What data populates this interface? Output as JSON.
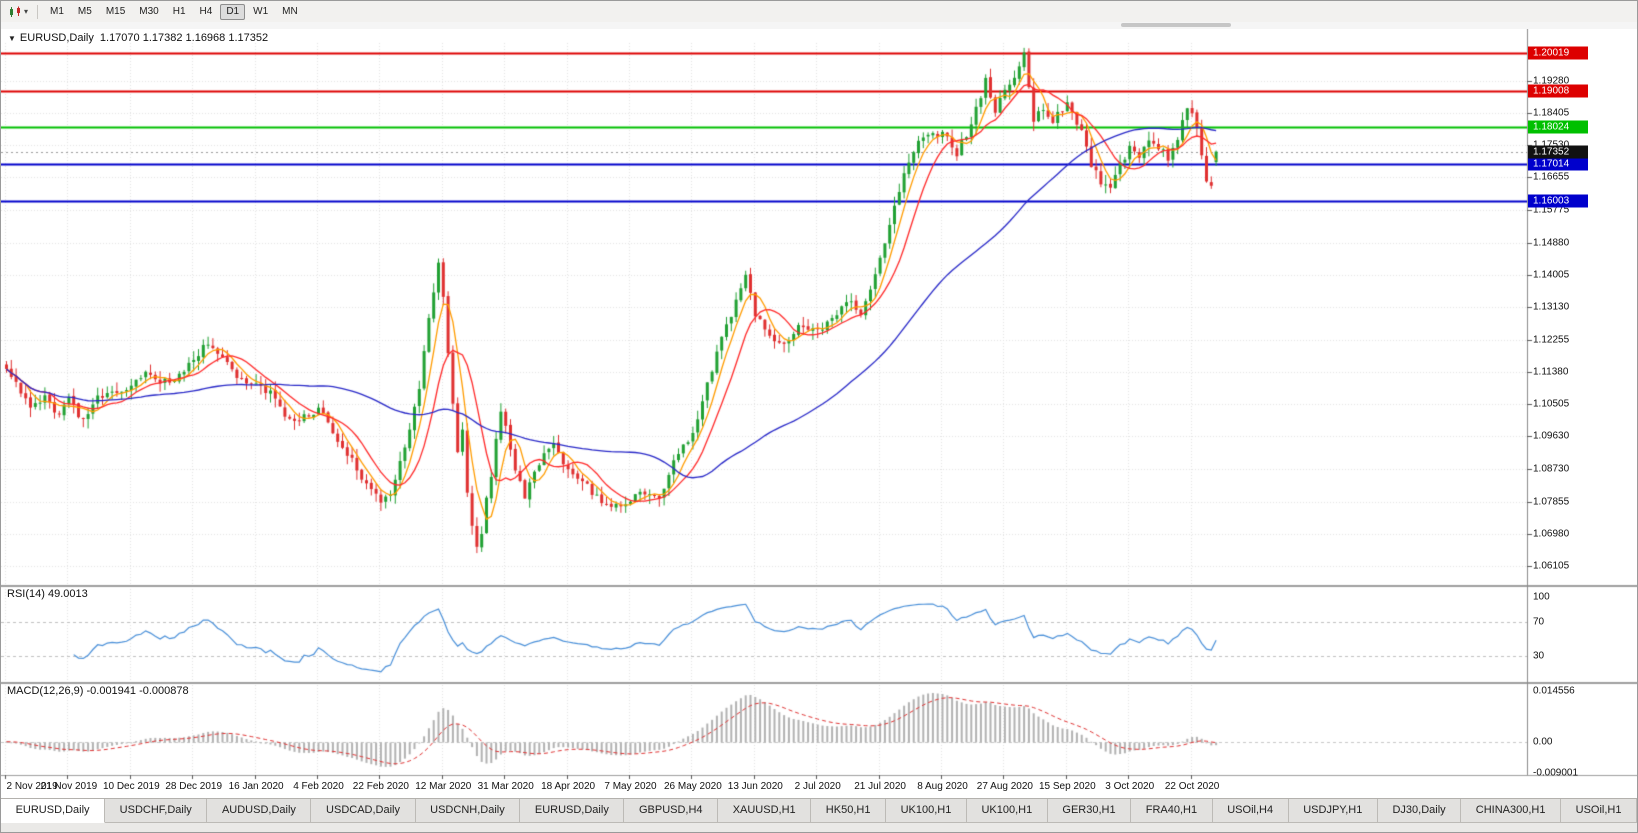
{
  "toolbar": {
    "timeframes": [
      "M1",
      "M5",
      "M15",
      "M30",
      "H1",
      "H4",
      "D1",
      "W1",
      "MN"
    ],
    "active_timeframe": "D1",
    "chart_type_caret": "▾"
  },
  "chart": {
    "collapse_caret": "▼",
    "symbol_label": "EURUSD,Daily",
    "ohlc_label": "1.17070 1.17382 1.16968 1.17352"
  },
  "price_axis": {
    "labels": [
      "1.19280",
      "1.18405",
      "1.17530",
      "1.16655",
      "1.15775",
      "1.14880",
      "1.14005",
      "1.13130",
      "1.12255",
      "1.11380",
      "1.10505",
      "1.09630",
      "1.08730",
      "1.07855",
      "1.06980",
      "1.06105"
    ]
  },
  "levels": [
    {
      "label": "1.20019",
      "color": "#dd0000"
    },
    {
      "label": "1.19008",
      "color": "#dd0000"
    },
    {
      "label": "1.18024",
      "color": "#00c000"
    },
    {
      "label": "1.17014",
      "color": "#0000cc"
    },
    {
      "label": "1.16003",
      "color": "#0000cc"
    }
  ],
  "current_price": {
    "label": "1.17352",
    "color": "#111111"
  },
  "rsi": {
    "label": "RSI(14)",
    "value": "49.0013",
    "axis_labels": [
      "100",
      "70",
      "30"
    ],
    "line_color": "#4a90d9"
  },
  "macd": {
    "label": "MACD(12,26,9)",
    "values": "-0.001941 -0.000878",
    "axis_labels": [
      "0.014556",
      "0.00",
      "-0.009001"
    ],
    "histogram_color": "#b2b2b2",
    "signal_color": "#e03232"
  },
  "date_axis": {
    "labels": [
      "2 Nov 2019",
      "21 Nov 2019",
      "10 Dec 2019",
      "28 Dec 2019",
      "16 Jan 2020",
      "4 Feb 2020",
      "22 Feb 2020",
      "12 Mar 2020",
      "31 Mar 2020",
      "18 Apr 2020",
      "7 May 2020",
      "26 May 2020",
      "13 Jun 2020",
      "2 Jul 2020",
      "21 Jul 2020",
      "8 Aug 2020",
      "27 Aug 2020",
      "15 Sep 2020",
      "3 Oct 2020",
      "22 Oct 2020"
    ]
  },
  "tabs": [
    "EURUSD,Daily",
    "USDCHF,Daily",
    "AUDUSD,Daily",
    "USDCAD,Daily",
    "USDCNH,Daily",
    "EURUSD,Daily",
    "GBPUSD,H4",
    "XAUUSD,H1",
    "HK50,H1",
    "UK100,H1",
    "UK100,H1",
    "GER30,H1",
    "FRA40,H1",
    "USOil,H4",
    "USDJPY,H1",
    "DJ30,Daily",
    "CHINA300,H1",
    "USOil,H1"
  ],
  "active_tab_index": 0,
  "chart_data": {
    "type": "candlestick",
    "symbol": "EURUSD",
    "timeframe": "Daily",
    "count": 253,
    "price_range": [
      1.0565,
      1.203
    ],
    "last_ohlc": {
      "open": 1.1707,
      "high": 1.17382,
      "low": 1.16968,
      "close": 1.17352
    },
    "up_color": "#21a133",
    "down_color": "#e03030",
    "moving_averages": [
      {
        "period": 5,
        "color": "#ff9c00"
      },
      {
        "period": 10,
        "color": "#ff2a2a"
      },
      {
        "period": 50,
        "color": "#2828c8"
      }
    ],
    "close_waypoints": [
      [
        0,
        1.1155
      ],
      [
        2,
        1.1105
      ],
      [
        5,
        1.1035
      ],
      [
        8,
        1.1065
      ],
      [
        11,
        1.102
      ],
      [
        13,
        1.106
      ],
      [
        16,
        1.1005
      ],
      [
        19,
        1.1075
      ],
      [
        22,
        1.108
      ],
      [
        26,
        1.1095
      ],
      [
        29,
        1.113
      ],
      [
        32,
        1.1115
      ],
      [
        35,
        1.112
      ],
      [
        39,
        1.1175
      ],
      [
        42,
        1.1215
      ],
      [
        45,
        1.117
      ],
      [
        48,
        1.1125
      ],
      [
        52,
        1.11
      ],
      [
        55,
        1.1085
      ],
      [
        58,
        1.1025
      ],
      [
        61,
        1.1005
      ],
      [
        65,
        1.104
      ],
      [
        68,
        1.0975
      ],
      [
        71,
        1.092
      ],
      [
        74,
        1.0845
      ],
      [
        78,
        1.079
      ],
      [
        80,
        1.081
      ],
      [
        82,
        1.089
      ],
      [
        84,
        1.099
      ],
      [
        86,
        1.109
      ],
      [
        88,
        1.128
      ],
      [
        90,
        1.143
      ],
      [
        91,
        1.135
      ],
      [
        92,
        1.118
      ],
      [
        93,
        1.106
      ],
      [
        94,
        1.092
      ],
      [
        95,
        1.098
      ],
      [
        96,
        1.082
      ],
      [
        97,
        1.072
      ],
      [
        98,
        1.066
      ],
      [
        99,
        1.07
      ],
      [
        100,
        1.079
      ],
      [
        101,
        1.085
      ],
      [
        102,
        1.096
      ],
      [
        103,
        1.103
      ],
      [
        104,
        1.099
      ],
      [
        106,
        1.088
      ],
      [
        108,
        1.08
      ],
      [
        110,
        1.086
      ],
      [
        112,
        1.091
      ],
      [
        114,
        1.0935
      ],
      [
        117,
        1.087
      ],
      [
        120,
        1.084
      ],
      [
        123,
        1.08
      ],
      [
        126,
        1.077
      ],
      [
        130,
        1.079
      ],
      [
        133,
        1.081
      ],
      [
        136,
        1.0795
      ],
      [
        139,
        1.089
      ],
      [
        143,
        1.0975
      ],
      [
        146,
        1.11
      ],
      [
        149,
        1.123
      ],
      [
        152,
        1.133
      ],
      [
        154,
        1.1395
      ],
      [
        156,
        1.129
      ],
      [
        159,
        1.124
      ],
      [
        162,
        1.1205
      ],
      [
        165,
        1.126
      ],
      [
        169,
        1.1245
      ],
      [
        172,
        1.128
      ],
      [
        175,
        1.133
      ],
      [
        178,
        1.13
      ],
      [
        182,
        1.144
      ],
      [
        185,
        1.159
      ],
      [
        188,
        1.171
      ],
      [
        191,
        1.178
      ],
      [
        195,
        1.1785
      ],
      [
        198,
        1.173
      ],
      [
        201,
        1.181
      ],
      [
        204,
        1.193
      ],
      [
        206,
        1.185
      ],
      [
        208,
        1.19
      ],
      [
        210,
        1.194
      ],
      [
        212,
        1.1995
      ],
      [
        213,
        1.1915
      ],
      [
        214,
        1.182
      ],
      [
        216,
        1.1855
      ],
      [
        218,
        1.1815
      ],
      [
        221,
        1.187
      ],
      [
        224,
        1.179
      ],
      [
        226,
        1.17
      ],
      [
        228,
        1.165
      ],
      [
        230,
        1.163
      ],
      [
        232,
        1.17
      ],
      [
        234,
        1.1745
      ],
      [
        236,
        1.1715
      ],
      [
        238,
        1.177
      ],
      [
        240,
        1.1745
      ],
      [
        242,
        1.172
      ],
      [
        244,
        1.1775
      ],
      [
        246,
        1.186
      ],
      [
        248,
        1.18
      ],
      [
        249,
        1.172
      ],
      [
        250,
        1.1655
      ],
      [
        251,
        1.1645
      ],
      [
        252,
        1.17352
      ]
    ]
  }
}
